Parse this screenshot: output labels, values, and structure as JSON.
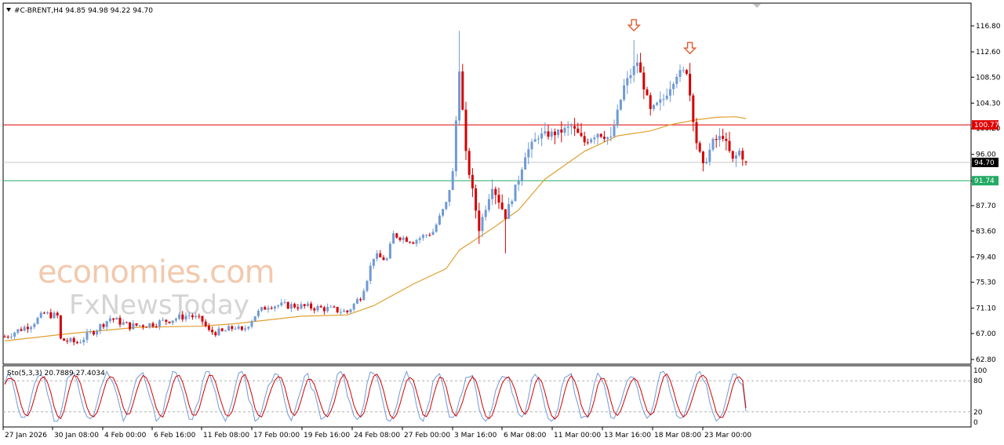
{
  "header": {
    "symbol_label": "#C-BRENT,H4  94.85 94.98 94.22 94.70"
  },
  "watermark": {
    "line1": "economies.com",
    "line2": "FxNewsToday"
  },
  "oscillator": {
    "label": "Sto(5,3,3) 20.7889 27.4034",
    "k_value": 20.7889,
    "d_value": 27.4034,
    "levels": [
      80,
      20
    ],
    "scale_labels": [
      "100",
      "80",
      "20",
      "0"
    ]
  },
  "colors": {
    "bull_candle": "#6f9ad6",
    "bear_candle": "#d40000",
    "ma_line": "#e0a030",
    "resistance_line": "#e00000",
    "support_line": "#22aa66",
    "current_price_line": "#c8c8c8",
    "stoch_k": "#6f9ad6",
    "stoch_d": "#d40000",
    "arrow": "#e05a2a"
  },
  "chart_data": {
    "type": "candlestick",
    "symbol": "#C-BRENT",
    "timeframe": "H4",
    "ohlc_last": {
      "open": 94.85,
      "high": 94.98,
      "low": 94.22,
      "close": 94.7
    },
    "ylim": [
      62.8,
      119.0
    ],
    "y_ticks": [
      "116.80",
      "112.60",
      "108.50",
      "104.30",
      "100.20",
      "96.00",
      "91.70",
      "87.70",
      "83.60",
      "79.40",
      "75.30",
      "71.10",
      "67.00",
      "62.80"
    ],
    "x_ticks": [
      "27 Jan 2026",
      "30 Jan 08:00",
      "4 Feb 00:00",
      "6 Feb 16:00",
      "11 Feb 08:00",
      "17 Feb 00:00",
      "19 Feb 16:00",
      "24 Feb 08:00",
      "27 Feb 00:00",
      "3 Mar 16:00",
      "6 Mar 08:00",
      "11 Mar 00:00",
      "13 Mar 16:00",
      "18 Mar 08:00",
      "23 Mar 00:00"
    ],
    "horizontal_levels": [
      {
        "value": 100.77,
        "label": "100.77",
        "role": "resistance"
      },
      {
        "value": 94.7,
        "label": "94.70",
        "role": "current"
      },
      {
        "value": 91.74,
        "label": "91.74",
        "role": "support"
      }
    ],
    "close_path": [
      [
        0,
        66.5
      ],
      [
        8,
        68.5
      ],
      [
        12,
        70.2
      ],
      [
        16,
        69.8
      ],
      [
        17,
        66.0
      ],
      [
        22,
        65.5
      ],
      [
        28,
        67.8
      ],
      [
        32,
        69.5
      ],
      [
        38,
        68.2
      ],
      [
        44,
        68.5
      ],
      [
        50,
        69.2
      ],
      [
        56,
        70.0
      ],
      [
        60,
        69.0
      ],
      [
        62,
        67.3
      ],
      [
        66,
        67.2
      ],
      [
        70,
        68.1
      ],
      [
        72,
        67.2
      ],
      [
        76,
        70.0
      ],
      [
        80,
        71.6
      ],
      [
        88,
        71.5
      ],
      [
        98,
        71.0
      ],
      [
        104,
        70.5
      ],
      [
        108,
        73.0
      ],
      [
        110,
        76.0
      ],
      [
        112,
        79.5
      ],
      [
        116,
        79.0
      ],
      [
        118,
        83.0
      ],
      [
        124,
        82.0
      ],
      [
        130,
        83.5
      ],
      [
        134,
        88.0
      ],
      [
        136,
        93.0
      ],
      [
        138,
        110.0
      ],
      [
        140,
        96.0
      ],
      [
        144,
        84.0
      ],
      [
        148,
        91.0
      ],
      [
        152,
        86.0
      ],
      [
        156,
        92.0
      ],
      [
        158,
        96.0
      ],
      [
        162,
        99.0
      ],
      [
        168,
        99.5
      ],
      [
        172,
        100.5
      ],
      [
        176,
        98.0
      ],
      [
        180,
        99.5
      ],
      [
        184,
        98.5
      ],
      [
        188,
        107.0
      ],
      [
        192,
        111.0
      ],
      [
        196,
        103.0
      ],
      [
        200,
        105.0
      ],
      [
        204,
        109.0
      ],
      [
        207,
        109.5
      ],
      [
        210,
        98.0
      ],
      [
        212,
        94.0
      ],
      [
        215,
        98.0
      ],
      [
        218,
        99.0
      ],
      [
        221,
        95.0
      ],
      [
        223,
        96.5
      ],
      [
        225,
        94.7
      ]
    ],
    "moving_average": [
      [
        0,
        65.8
      ],
      [
        20,
        67.0
      ],
      [
        40,
        68.0
      ],
      [
        60,
        68.2
      ],
      [
        70,
        68.6
      ],
      [
        90,
        69.8
      ],
      [
        104,
        70.0
      ],
      [
        112,
        71.5
      ],
      [
        124,
        75.0
      ],
      [
        134,
        77.5
      ],
      [
        138,
        80.5
      ],
      [
        148,
        84.0
      ],
      [
        156,
        87.0
      ],
      [
        164,
        92.0
      ],
      [
        176,
        96.5
      ],
      [
        186,
        99.0
      ],
      [
        196,
        99.8
      ],
      [
        202,
        100.8
      ],
      [
        210,
        101.6
      ],
      [
        216,
        102.0
      ],
      [
        222,
        102.1
      ],
      [
        225,
        101.8
      ]
    ],
    "marked_peaks": [
      {
        "index": 191,
        "high": 114.5
      },
      {
        "index": 208,
        "high": 110.8
      }
    ],
    "bars_shown": 226
  }
}
